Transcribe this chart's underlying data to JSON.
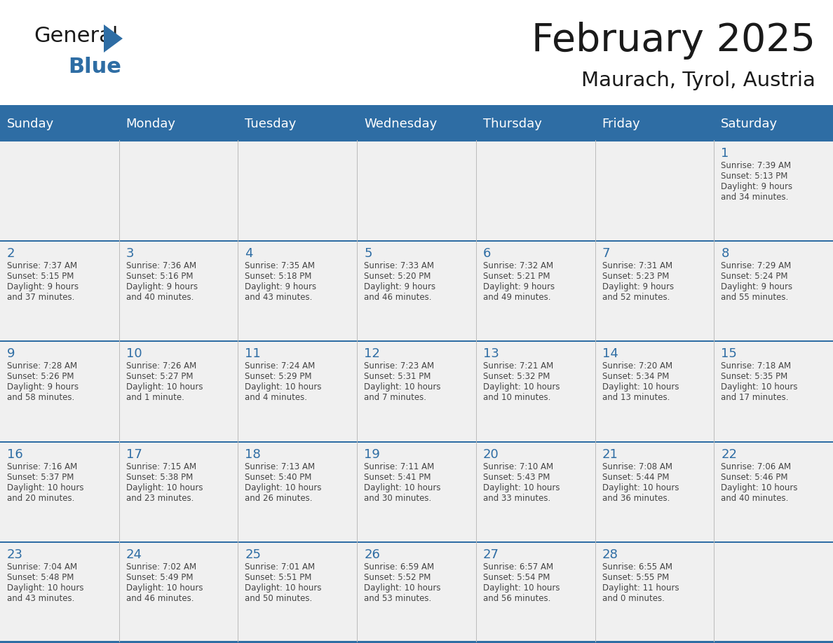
{
  "title": "February 2025",
  "subtitle": "Maurach, Tyrol, Austria",
  "header_bg": "#2E6DA4",
  "header_text_color": "#FFFFFF",
  "cell_bg": "#F0F0F0",
  "day_number_color": "#2E6DA4",
  "cell_text_color": "#444444",
  "line_color": "#2E6DA4",
  "days_of_week": [
    "Sunday",
    "Monday",
    "Tuesday",
    "Wednesday",
    "Thursday",
    "Friday",
    "Saturday"
  ],
  "calendar_data": [
    [
      null,
      null,
      null,
      null,
      null,
      null,
      {
        "day": "1",
        "sunrise": "7:39 AM",
        "sunset": "5:13 PM",
        "dl1": "Daylight: 9 hours",
        "dl2": "and 34 minutes."
      }
    ],
    [
      {
        "day": "2",
        "sunrise": "7:37 AM",
        "sunset": "5:15 PM",
        "dl1": "Daylight: 9 hours",
        "dl2": "and 37 minutes."
      },
      {
        "day": "3",
        "sunrise": "7:36 AM",
        "sunset": "5:16 PM",
        "dl1": "Daylight: 9 hours",
        "dl2": "and 40 minutes."
      },
      {
        "day": "4",
        "sunrise": "7:35 AM",
        "sunset": "5:18 PM",
        "dl1": "Daylight: 9 hours",
        "dl2": "and 43 minutes."
      },
      {
        "day": "5",
        "sunrise": "7:33 AM",
        "sunset": "5:20 PM",
        "dl1": "Daylight: 9 hours",
        "dl2": "and 46 minutes."
      },
      {
        "day": "6",
        "sunrise": "7:32 AM",
        "sunset": "5:21 PM",
        "dl1": "Daylight: 9 hours",
        "dl2": "and 49 minutes."
      },
      {
        "day": "7",
        "sunrise": "7:31 AM",
        "sunset": "5:23 PM",
        "dl1": "Daylight: 9 hours",
        "dl2": "and 52 minutes."
      },
      {
        "day": "8",
        "sunrise": "7:29 AM",
        "sunset": "5:24 PM",
        "dl1": "Daylight: 9 hours",
        "dl2": "and 55 minutes."
      }
    ],
    [
      {
        "day": "9",
        "sunrise": "7:28 AM",
        "sunset": "5:26 PM",
        "dl1": "Daylight: 9 hours",
        "dl2": "and 58 minutes."
      },
      {
        "day": "10",
        "sunrise": "7:26 AM",
        "sunset": "5:27 PM",
        "dl1": "Daylight: 10 hours",
        "dl2": "and 1 minute."
      },
      {
        "day": "11",
        "sunrise": "7:24 AM",
        "sunset": "5:29 PM",
        "dl1": "Daylight: 10 hours",
        "dl2": "and 4 minutes."
      },
      {
        "day": "12",
        "sunrise": "7:23 AM",
        "sunset": "5:31 PM",
        "dl1": "Daylight: 10 hours",
        "dl2": "and 7 minutes."
      },
      {
        "day": "13",
        "sunrise": "7:21 AM",
        "sunset": "5:32 PM",
        "dl1": "Daylight: 10 hours",
        "dl2": "and 10 minutes."
      },
      {
        "day": "14",
        "sunrise": "7:20 AM",
        "sunset": "5:34 PM",
        "dl1": "Daylight: 10 hours",
        "dl2": "and 13 minutes."
      },
      {
        "day": "15",
        "sunrise": "7:18 AM",
        "sunset": "5:35 PM",
        "dl1": "Daylight: 10 hours",
        "dl2": "and 17 minutes."
      }
    ],
    [
      {
        "day": "16",
        "sunrise": "7:16 AM",
        "sunset": "5:37 PM",
        "dl1": "Daylight: 10 hours",
        "dl2": "and 20 minutes."
      },
      {
        "day": "17",
        "sunrise": "7:15 AM",
        "sunset": "5:38 PM",
        "dl1": "Daylight: 10 hours",
        "dl2": "and 23 minutes."
      },
      {
        "day": "18",
        "sunrise": "7:13 AM",
        "sunset": "5:40 PM",
        "dl1": "Daylight: 10 hours",
        "dl2": "and 26 minutes."
      },
      {
        "day": "19",
        "sunrise": "7:11 AM",
        "sunset": "5:41 PM",
        "dl1": "Daylight: 10 hours",
        "dl2": "and 30 minutes."
      },
      {
        "day": "20",
        "sunrise": "7:10 AM",
        "sunset": "5:43 PM",
        "dl1": "Daylight: 10 hours",
        "dl2": "and 33 minutes."
      },
      {
        "day": "21",
        "sunrise": "7:08 AM",
        "sunset": "5:44 PM",
        "dl1": "Daylight: 10 hours",
        "dl2": "and 36 minutes."
      },
      {
        "day": "22",
        "sunrise": "7:06 AM",
        "sunset": "5:46 PM",
        "dl1": "Daylight: 10 hours",
        "dl2": "and 40 minutes."
      }
    ],
    [
      {
        "day": "23",
        "sunrise": "7:04 AM",
        "sunset": "5:48 PM",
        "dl1": "Daylight: 10 hours",
        "dl2": "and 43 minutes."
      },
      {
        "day": "24",
        "sunrise": "7:02 AM",
        "sunset": "5:49 PM",
        "dl1": "Daylight: 10 hours",
        "dl2": "and 46 minutes."
      },
      {
        "day": "25",
        "sunrise": "7:01 AM",
        "sunset": "5:51 PM",
        "dl1": "Daylight: 10 hours",
        "dl2": "and 50 minutes."
      },
      {
        "day": "26",
        "sunrise": "6:59 AM",
        "sunset": "5:52 PM",
        "dl1": "Daylight: 10 hours",
        "dl2": "and 53 minutes."
      },
      {
        "day": "27",
        "sunrise": "6:57 AM",
        "sunset": "5:54 PM",
        "dl1": "Daylight: 10 hours",
        "dl2": "and 56 minutes."
      },
      {
        "day": "28",
        "sunrise": "6:55 AM",
        "sunset": "5:55 PM",
        "dl1": "Daylight: 11 hours",
        "dl2": "and 0 minutes."
      },
      null
    ]
  ]
}
